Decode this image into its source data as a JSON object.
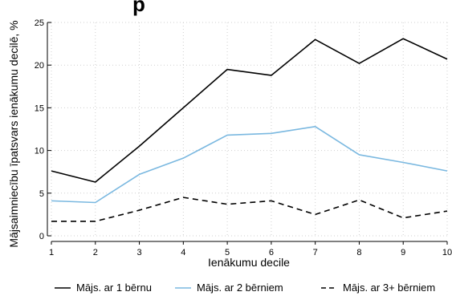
{
  "chart_data": {
    "type": "line",
    "title": "p",
    "xlabel": "Ienākumu decile",
    "ylabel": "Mājsaimniecību īpatsvars ienākumu decilē, %",
    "x": [
      1,
      2,
      3,
      4,
      5,
      6,
      7,
      8,
      9,
      10
    ],
    "xlim": [
      1,
      10
    ],
    "ylim": [
      0,
      25
    ],
    "yticks": [
      0,
      5,
      10,
      15,
      20,
      25
    ],
    "grid": true,
    "legend_position": "bottom",
    "series": [
      {
        "name": "Mājs. ar 1 bērnu",
        "color": "#000000",
        "dash": "solid",
        "values": [
          7.6,
          6.3,
          10.5,
          15.0,
          19.5,
          18.8,
          23.0,
          20.2,
          23.1,
          20.7
        ]
      },
      {
        "name": "Mājs. ar 2 bērniem",
        "color": "#7ab8e0",
        "dash": "solid",
        "values": [
          4.1,
          3.9,
          7.2,
          9.1,
          11.8,
          12.0,
          12.8,
          9.5,
          8.6,
          7.6
        ]
      },
      {
        "name": "Mājs. ar 3+ bērniem",
        "color": "#000000",
        "dash": "dashed",
        "values": [
          1.7,
          1.7,
          3.0,
          4.5,
          3.7,
          4.1,
          2.5,
          4.2,
          2.1,
          2.9
        ]
      }
    ]
  }
}
